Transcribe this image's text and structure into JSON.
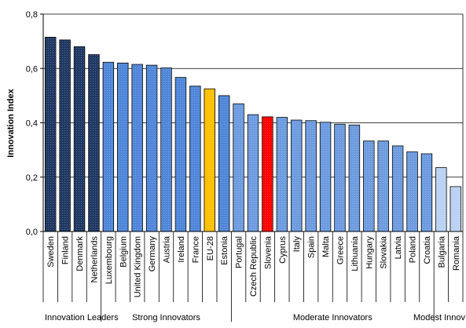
{
  "chart_data": {
    "type": "bar",
    "title": "",
    "xlabel": "",
    "ylabel": "Innovation Index",
    "ylim": [
      0,
      0.8
    ],
    "yticks": [
      "0,0",
      "0,2",
      "0,4",
      "0,6",
      "0,8"
    ],
    "grid": "horizontal",
    "categories": [
      "Sweden",
      "Finland",
      "Denmark",
      "Netherlands",
      "Luxembourg",
      "Belgium",
      "United Kingdom",
      "Germany",
      "Austria",
      "Ireland",
      "France",
      "EU-28",
      "Estonia",
      "Portugal",
      "Czech Republic",
      "Slovenia",
      "Cyprus",
      "Italy",
      "Spain",
      "Malta",
      "Greece",
      "Lithuania",
      "Hungary",
      "Slovakia",
      "Latvia",
      "Poland",
      "Croatia",
      "Bulgaria",
      "Romania"
    ],
    "values": [
      0.715,
      0.705,
      0.68,
      0.651,
      0.623,
      0.62,
      0.615,
      0.612,
      0.602,
      0.567,
      0.535,
      0.525,
      0.5,
      0.47,
      0.43,
      0.422,
      0.42,
      0.41,
      0.408,
      0.402,
      0.395,
      0.392,
      0.333,
      0.333,
      0.315,
      0.293,
      0.286,
      0.235,
      0.165
    ],
    "bar_groups": [
      "leaders",
      "leaders",
      "leaders",
      "leaders",
      "strong",
      "strong",
      "strong",
      "strong",
      "strong",
      "strong",
      "strong",
      "eu",
      "strong",
      "moderate",
      "moderate",
      "highlight",
      "moderate",
      "moderate",
      "moderate",
      "moderate",
      "moderate",
      "moderate",
      "moderate",
      "moderate",
      "moderate",
      "moderate",
      "moderate",
      "modest",
      "modest"
    ],
    "groups": [
      {
        "label": "Innovation Leaders",
        "first": 0,
        "last": 3
      },
      {
        "label": "Strong Innovators",
        "first": 4,
        "last": 12
      },
      {
        "label": "Moderate Innovators",
        "first": 13,
        "last": 26
      },
      {
        "label": "Modest Innov",
        "first": 27,
        "last": 28
      }
    ],
    "colors": {
      "leaders": "#1f3864",
      "strong": "#4f86d9",
      "eu": "#ffc000",
      "moderate": "#6d9be0",
      "highlight": "#ff0000",
      "modest": "#b9d2f3",
      "grid": "#000000",
      "background": "#ffffff"
    }
  }
}
